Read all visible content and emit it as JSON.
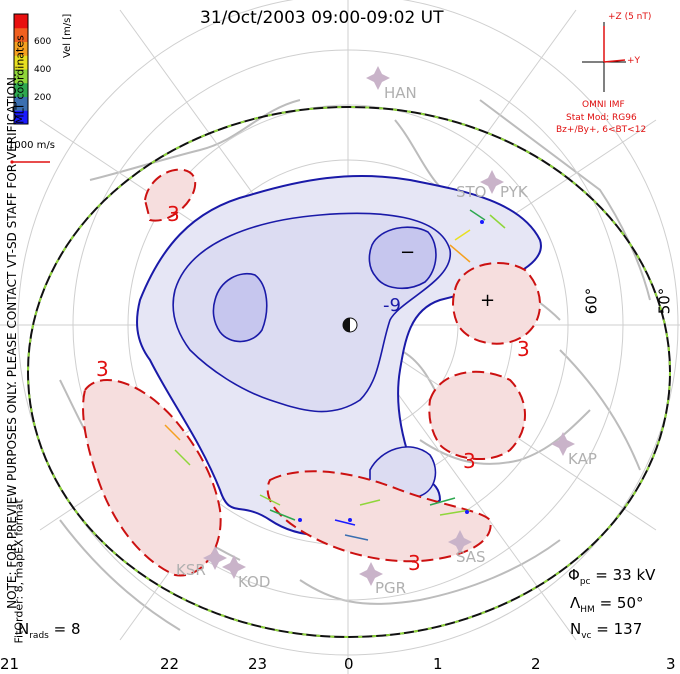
{
  "title": "31/Oct/2003 09:00-09:02 UT",
  "vertical_note": "NOTE: FOR PREVIEW PURPOSES ONLY. PLEASE CONTACT VT-SD STAFF FOR VERIFICATION.",
  "coord_note": "MLT coordinates",
  "fit_note_1": "FitOrder: 8, mapEX format",
  "colorbar": {
    "label": "Vel [m/s]",
    "ticks": [
      "600",
      "400",
      "200"
    ],
    "colors": [
      "#1a1aff",
      "#3a6fb0",
      "#2ea84f",
      "#8fd63a",
      "#e8e020",
      "#f5a020",
      "#f06020",
      "#e81010"
    ]
  },
  "scale_label": "1000 m/s",
  "imf": {
    "z_label": "+Z (5 nT)",
    "y_label": "+Y",
    "source": "OMNI IMF",
    "model_1": "Stat Mod: RG96",
    "model_2": "Bz+/By+, 6<BT<12"
  },
  "contours": {
    "minus_label": "−",
    "plus_label": "+",
    "neg_value": "-9",
    "pos_value": "3"
  },
  "latitude_labels": [
    "60°",
    "50°"
  ],
  "stations": [
    "HAN",
    "STO",
    "PYK",
    "KAP",
    "SAS",
    "PGR",
    "KOD",
    "KSR"
  ],
  "stats": {
    "phi_label": "Φ",
    "phi_sub": "pc",
    "phi_value": "= 33 kV",
    "lambda_label": "Λ",
    "lambda_sub": "HM",
    "lambda_value": "= 50°",
    "nvc_label": "N",
    "nvc_sub": "vc",
    "nvc_value": "= 137",
    "nrads_label": "N",
    "nrads_sub": "rads",
    "nrads_value": "= 8"
  },
  "mlt_labels": [
    "21",
    "22",
    "23",
    "0",
    "1",
    "2",
    "3"
  ]
}
